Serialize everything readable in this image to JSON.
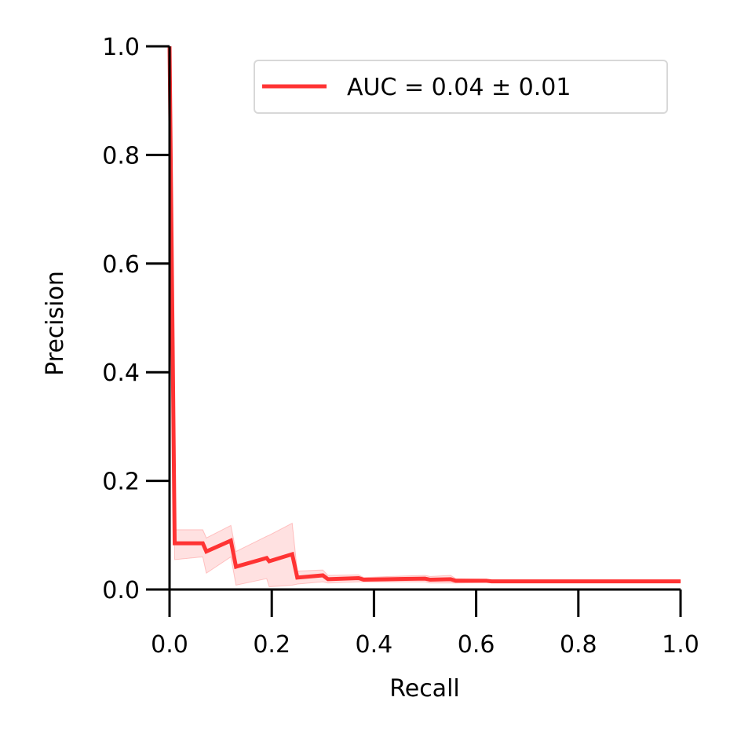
{
  "chart_data": {
    "type": "line",
    "title": "",
    "xlabel": "Recall",
    "ylabel": "Precision",
    "xlim": [
      0,
      1
    ],
    "ylim": [
      0,
      1
    ],
    "xticks": [
      "0.0",
      "0.2",
      "0.4",
      "0.6",
      "0.8",
      "1.0"
    ],
    "yticks": [
      "0.0",
      "0.2",
      "0.4",
      "0.6",
      "0.8",
      "1.0"
    ],
    "grid": false,
    "legend_position": "top-right",
    "series": [
      {
        "name": "AUC = 0.04 ± 0.01",
        "color": "#ff3333",
        "x": [
          0.0,
          0.005,
          0.01,
          0.065,
          0.072,
          0.12,
          0.13,
          0.19,
          0.195,
          0.24,
          0.25,
          0.3,
          0.31,
          0.37,
          0.38,
          0.43,
          0.5,
          0.51,
          0.55,
          0.56,
          0.62,
          0.63,
          1.0
        ],
        "y": [
          1.0,
          0.55,
          0.085,
          0.085,
          0.07,
          0.09,
          0.042,
          0.058,
          0.052,
          0.065,
          0.022,
          0.026,
          0.019,
          0.021,
          0.018,
          0.019,
          0.02,
          0.018,
          0.019,
          0.016,
          0.016,
          0.015,
          0.015
        ],
        "band_upper": [
          1.0,
          0.58,
          0.11,
          0.11,
          0.095,
          0.118,
          0.07,
          0.098,
          0.1,
          0.122,
          0.034,
          0.036,
          0.026,
          0.027,
          0.022,
          0.024,
          0.026,
          0.024,
          0.026,
          0.02,
          0.019,
          0.017,
          0.017
        ],
        "band_lower": [
          1.0,
          0.52,
          0.055,
          0.06,
          0.03,
          0.06,
          0.008,
          0.02,
          0.005,
          0.008,
          0.01,
          0.014,
          0.012,
          0.014,
          0.014,
          0.014,
          0.014,
          0.012,
          0.012,
          0.012,
          0.013,
          0.013,
          0.013
        ]
      }
    ]
  }
}
